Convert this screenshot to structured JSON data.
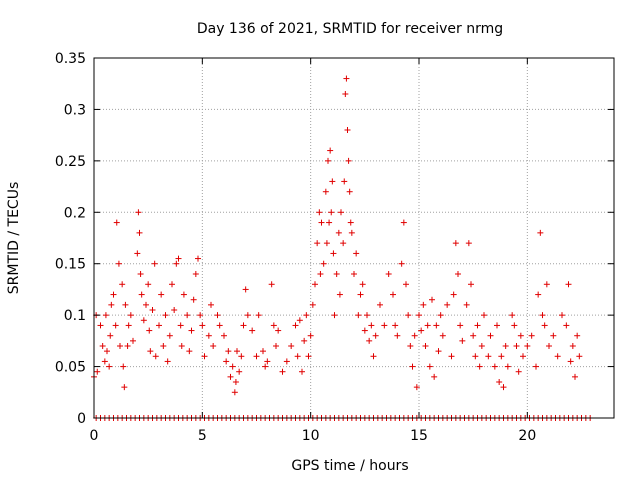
{
  "chart_data": {
    "type": "scatter",
    "title": "Day 136 of 2021, SRMTID for receiver nrmg",
    "xlabel": "GPS time / hours",
    "ylabel": "SRMTID / TECUs",
    "xlim": [
      0,
      24
    ],
    "ylim": [
      0,
      0.35
    ],
    "grid": true,
    "x_ticks": [
      {
        "value": 0,
        "label": "0"
      },
      {
        "value": 5,
        "label": "5"
      },
      {
        "value": 10,
        "label": "10"
      },
      {
        "value": 15,
        "label": "15"
      },
      {
        "value": 20,
        "label": "20"
      }
    ],
    "y_ticks": [
      {
        "value": 0,
        "label": "0"
      },
      {
        "value": 0.05,
        "label": "0.05"
      },
      {
        "value": 0.1,
        "label": "0.1"
      },
      {
        "value": 0.15,
        "label": "0.15"
      },
      {
        "value": 0.2,
        "label": "0.2"
      },
      {
        "value": 0.25,
        "label": "0.25"
      },
      {
        "value": 0.3,
        "label": "0.3"
      },
      {
        "value": 0.35,
        "label": "0.35"
      }
    ],
    "marker": "+",
    "color": "#e00000",
    "series": [
      {
        "name": "SRMTID",
        "points": [
          [
            0.0,
            0.04
          ],
          [
            0.1,
            0.1
          ],
          [
            0.15,
            0.045
          ],
          [
            0.3,
            0.09
          ],
          [
            0.4,
            0.07
          ],
          [
            0.5,
            0.055
          ],
          [
            0.55,
            0.1
          ],
          [
            0.6,
            0.065
          ],
          [
            0.7,
            0.05
          ],
          [
            0.75,
            0.08
          ],
          [
            0.8,
            0.11
          ],
          [
            0.9,
            0.12
          ],
          [
            1.0,
            0.09
          ],
          [
            1.05,
            0.19
          ],
          [
            1.15,
            0.15
          ],
          [
            1.2,
            0.07
          ],
          [
            1.3,
            0.13
          ],
          [
            1.35,
            0.05
          ],
          [
            1.4,
            0.03
          ],
          [
            1.45,
            0.11
          ],
          [
            1.55,
            0.07
          ],
          [
            1.6,
            0.09
          ],
          [
            1.7,
            0.1
          ],
          [
            1.8,
            0.075
          ],
          [
            2.0,
            0.16
          ],
          [
            2.05,
            0.2
          ],
          [
            2.1,
            0.18
          ],
          [
            2.15,
            0.14
          ],
          [
            2.2,
            0.12
          ],
          [
            2.3,
            0.095
          ],
          [
            2.4,
            0.11
          ],
          [
            2.5,
            0.13
          ],
          [
            2.55,
            0.085
          ],
          [
            2.6,
            0.065
          ],
          [
            2.7,
            0.105
          ],
          [
            2.8,
            0.15
          ],
          [
            2.85,
            0.06
          ],
          [
            3.0,
            0.09
          ],
          [
            3.1,
            0.12
          ],
          [
            3.2,
            0.07
          ],
          [
            3.3,
            0.1
          ],
          [
            3.4,
            0.055
          ],
          [
            3.5,
            0.08
          ],
          [
            3.6,
            0.13
          ],
          [
            3.7,
            0.105
          ],
          [
            3.8,
            0.15
          ],
          [
            3.9,
            0.155
          ],
          [
            4.0,
            0.09
          ],
          [
            4.05,
            0.07
          ],
          [
            4.15,
            0.12
          ],
          [
            4.3,
            0.1
          ],
          [
            4.4,
            0.065
          ],
          [
            4.5,
            0.085
          ],
          [
            4.6,
            0.115
          ],
          [
            4.7,
            0.14
          ],
          [
            4.8,
            0.155
          ],
          [
            4.9,
            0.1
          ],
          [
            5.0,
            0.09
          ],
          [
            5.1,
            0.06
          ],
          [
            5.3,
            0.08
          ],
          [
            5.4,
            0.11
          ],
          [
            5.5,
            0.07
          ],
          [
            5.7,
            0.1
          ],
          [
            5.8,
            0.09
          ],
          [
            6.0,
            0.08
          ],
          [
            6.1,
            0.055
          ],
          [
            6.2,
            0.065
          ],
          [
            6.3,
            0.04
          ],
          [
            6.4,
            0.05
          ],
          [
            6.5,
            0.025
          ],
          [
            6.55,
            0.035
          ],
          [
            6.6,
            0.065
          ],
          [
            6.7,
            0.045
          ],
          [
            6.8,
            0.06
          ],
          [
            6.9,
            0.09
          ],
          [
            7.0,
            0.125
          ],
          [
            7.1,
            0.1
          ],
          [
            7.3,
            0.085
          ],
          [
            7.5,
            0.06
          ],
          [
            7.6,
            0.1
          ],
          [
            7.8,
            0.065
          ],
          [
            7.9,
            0.05
          ],
          [
            8.0,
            0.055
          ],
          [
            8.2,
            0.13
          ],
          [
            8.3,
            0.09
          ],
          [
            8.4,
            0.07
          ],
          [
            8.5,
            0.085
          ],
          [
            8.7,
            0.045
          ],
          [
            8.9,
            0.055
          ],
          [
            9.1,
            0.07
          ],
          [
            9.3,
            0.09
          ],
          [
            9.4,
            0.06
          ],
          [
            9.5,
            0.095
          ],
          [
            9.6,
            0.045
          ],
          [
            9.7,
            0.075
          ],
          [
            9.8,
            0.1
          ],
          [
            9.9,
            0.06
          ],
          [
            10.0,
            0.08
          ],
          [
            10.1,
            0.11
          ],
          [
            10.2,
            0.13
          ],
          [
            10.3,
            0.17
          ],
          [
            10.4,
            0.2
          ],
          [
            10.45,
            0.14
          ],
          [
            10.5,
            0.19
          ],
          [
            10.6,
            0.15
          ],
          [
            10.7,
            0.22
          ],
          [
            10.75,
            0.17
          ],
          [
            10.8,
            0.25
          ],
          [
            10.85,
            0.19
          ],
          [
            10.9,
            0.26
          ],
          [
            10.95,
            0.2
          ],
          [
            11.0,
            0.23
          ],
          [
            11.05,
            0.16
          ],
          [
            11.1,
            0.1
          ],
          [
            11.2,
            0.14
          ],
          [
            11.3,
            0.18
          ],
          [
            11.35,
            0.12
          ],
          [
            11.4,
            0.2
          ],
          [
            11.5,
            0.17
          ],
          [
            11.55,
            0.23
          ],
          [
            11.6,
            0.315
          ],
          [
            11.65,
            0.33
          ],
          [
            11.7,
            0.28
          ],
          [
            11.75,
            0.25
          ],
          [
            11.8,
            0.22
          ],
          [
            11.85,
            0.19
          ],
          [
            11.9,
            0.18
          ],
          [
            12.0,
            0.14
          ],
          [
            12.1,
            0.16
          ],
          [
            12.2,
            0.1
          ],
          [
            12.3,
            0.12
          ],
          [
            12.4,
            0.13
          ],
          [
            12.5,
            0.085
          ],
          [
            12.6,
            0.1
          ],
          [
            12.7,
            0.075
          ],
          [
            12.8,
            0.09
          ],
          [
            12.9,
            0.06
          ],
          [
            13.0,
            0.08
          ],
          [
            13.2,
            0.11
          ],
          [
            13.4,
            0.09
          ],
          [
            13.6,
            0.14
          ],
          [
            13.8,
            0.12
          ],
          [
            13.9,
            0.09
          ],
          [
            14.0,
            0.08
          ],
          [
            14.2,
            0.15
          ],
          [
            14.3,
            0.19
          ],
          [
            14.4,
            0.13
          ],
          [
            14.5,
            0.1
          ],
          [
            14.6,
            0.07
          ],
          [
            14.7,
            0.05
          ],
          [
            14.8,
            0.08
          ],
          [
            14.9,
            0.03
          ],
          [
            15.0,
            0.1
          ],
          [
            15.1,
            0.085
          ],
          [
            15.2,
            0.11
          ],
          [
            15.3,
            0.07
          ],
          [
            15.4,
            0.09
          ],
          [
            15.5,
            0.05
          ],
          [
            15.6,
            0.115
          ],
          [
            15.7,
            0.04
          ],
          [
            15.8,
            0.09
          ],
          [
            15.9,
            0.065
          ],
          [
            16.0,
            0.1
          ],
          [
            16.1,
            0.08
          ],
          [
            16.3,
            0.11
          ],
          [
            16.5,
            0.06
          ],
          [
            16.6,
            0.12
          ],
          [
            16.7,
            0.17
          ],
          [
            16.8,
            0.14
          ],
          [
            16.9,
            0.09
          ],
          [
            17.0,
            0.075
          ],
          [
            17.2,
            0.11
          ],
          [
            17.3,
            0.17
          ],
          [
            17.4,
            0.13
          ],
          [
            17.5,
            0.08
          ],
          [
            17.6,
            0.06
          ],
          [
            17.7,
            0.09
          ],
          [
            17.8,
            0.05
          ],
          [
            17.9,
            0.07
          ],
          [
            18.0,
            0.1
          ],
          [
            18.2,
            0.06
          ],
          [
            18.3,
            0.08
          ],
          [
            18.5,
            0.05
          ],
          [
            18.6,
            0.09
          ],
          [
            18.7,
            0.035
          ],
          [
            18.8,
            0.06
          ],
          [
            18.9,
            0.03
          ],
          [
            19.0,
            0.07
          ],
          [
            19.1,
            0.05
          ],
          [
            19.3,
            0.1
          ],
          [
            19.4,
            0.09
          ],
          [
            19.5,
            0.07
          ],
          [
            19.6,
            0.045
          ],
          [
            19.7,
            0.08
          ],
          [
            19.8,
            0.06
          ],
          [
            20.0,
            0.07
          ],
          [
            20.2,
            0.08
          ],
          [
            20.4,
            0.05
          ],
          [
            20.5,
            0.12
          ],
          [
            20.6,
            0.18
          ],
          [
            20.7,
            0.1
          ],
          [
            20.8,
            0.09
          ],
          [
            20.9,
            0.13
          ],
          [
            21.0,
            0.07
          ],
          [
            21.2,
            0.08
          ],
          [
            21.4,
            0.06
          ],
          [
            21.6,
            0.1
          ],
          [
            21.8,
            0.09
          ],
          [
            21.9,
            0.13
          ],
          [
            22.0,
            0.055
          ],
          [
            22.1,
            0.07
          ],
          [
            22.2,
            0.04
          ],
          [
            22.3,
            0.08
          ],
          [
            22.4,
            0.06
          ]
        ],
        "zero_points_x": [
          0.1,
          0.3,
          0.5,
          0.7,
          0.9,
          1.1,
          1.3,
          1.5,
          1.7,
          1.9,
          2.1,
          2.3,
          2.5,
          2.7,
          2.9,
          3.1,
          3.3,
          3.5,
          3.7,
          3.9,
          4.1,
          4.3,
          4.5,
          4.7,
          4.9,
          5.1,
          5.3,
          5.5,
          5.7,
          5.9,
          6.1,
          6.3,
          6.5,
          6.7,
          6.9,
          7.1,
          7.3,
          7.5,
          7.7,
          7.9,
          8.1,
          8.3,
          8.5,
          8.7,
          8.9,
          9.1,
          9.3,
          9.5,
          9.7,
          9.9,
          10.1,
          10.3,
          10.5,
          10.7,
          10.9,
          11.1,
          11.3,
          11.5,
          11.7,
          11.9,
          12.1,
          12.3,
          12.5,
          12.7,
          12.9,
          13.1,
          13.3,
          13.5,
          13.7,
          13.9,
          14.1,
          14.3,
          14.5,
          14.7,
          14.9,
          15.1,
          15.3,
          15.5,
          15.7,
          15.9,
          16.1,
          16.3,
          16.5,
          16.7,
          16.9,
          17.1,
          17.3,
          17.5,
          17.7,
          17.9,
          18.1,
          18.3,
          18.5,
          18.7,
          18.9,
          19.1,
          19.3,
          19.5,
          19.7,
          19.9,
          20.1,
          20.3,
          20.5,
          20.7,
          20.9,
          21.1,
          21.3,
          21.5,
          21.7,
          21.9,
          22.1,
          22.3,
          22.5,
          22.7,
          22.9
        ]
      }
    ]
  }
}
